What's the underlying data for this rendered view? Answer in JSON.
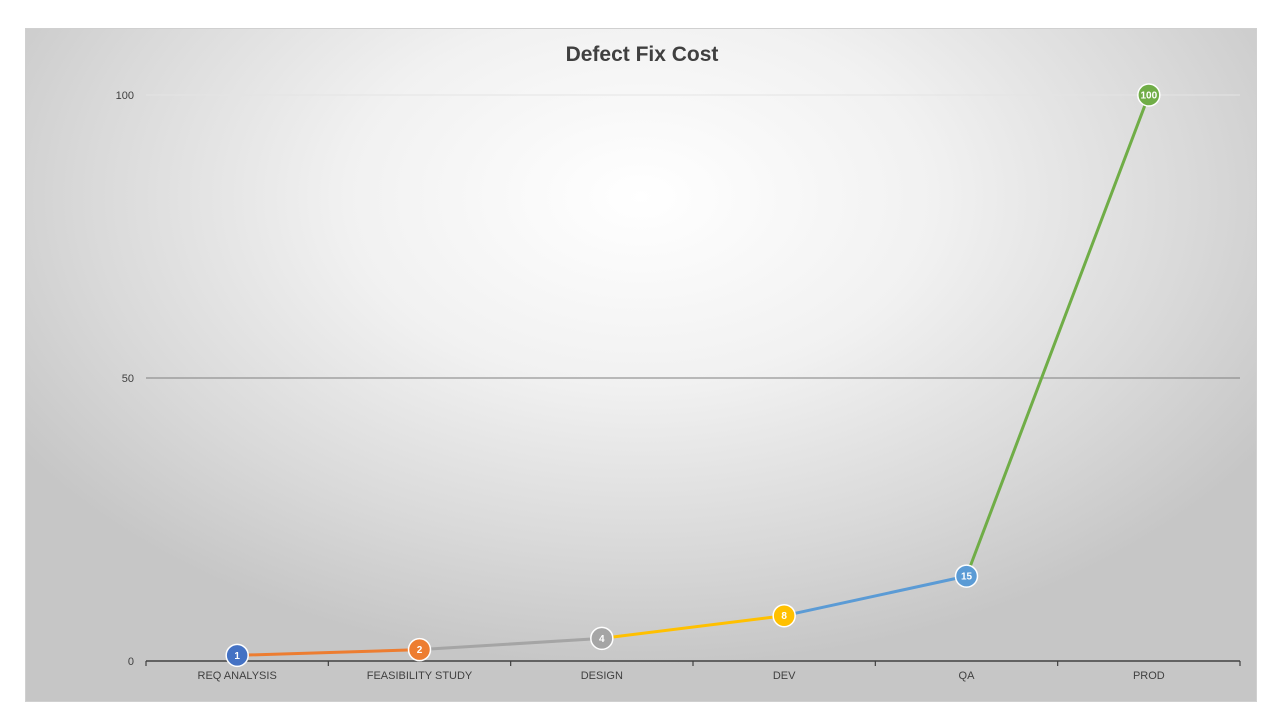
{
  "chart_data": {
    "type": "line",
    "title": "Defect Fix Cost",
    "xlabel": "",
    "ylabel": "",
    "categories": [
      "REQ ANALYSIS",
      "FEASIBILITY STUDY",
      "DESIGN",
      "DEV",
      "QA",
      "PROD"
    ],
    "values": [
      1,
      2,
      4,
      8,
      15,
      100
    ],
    "data_labels": [
      "1",
      "2",
      "4",
      "8",
      "15",
      "100"
    ],
    "ylim": [
      0,
      100
    ],
    "y_ticks": [
      0,
      50,
      100
    ],
    "y_tick_labels": [
      "0",
      "50",
      "100"
    ],
    "grid": true,
    "legend": "none",
    "point_colors": [
      "#4472c4",
      "#ed7d31",
      "#a5a5a5",
      "#ffc000",
      "#5b9bd5",
      "#70ad47"
    ],
    "segment_colors": [
      "#ed7d31",
      "#a5a5a5",
      "#ffc000",
      "#5b9bd5",
      "#70ad47"
    ],
    "gridline_colors": [
      "#444444",
      "#7f7f7f",
      "#e4e4e4"
    ],
    "axis_color": "#404040"
  }
}
